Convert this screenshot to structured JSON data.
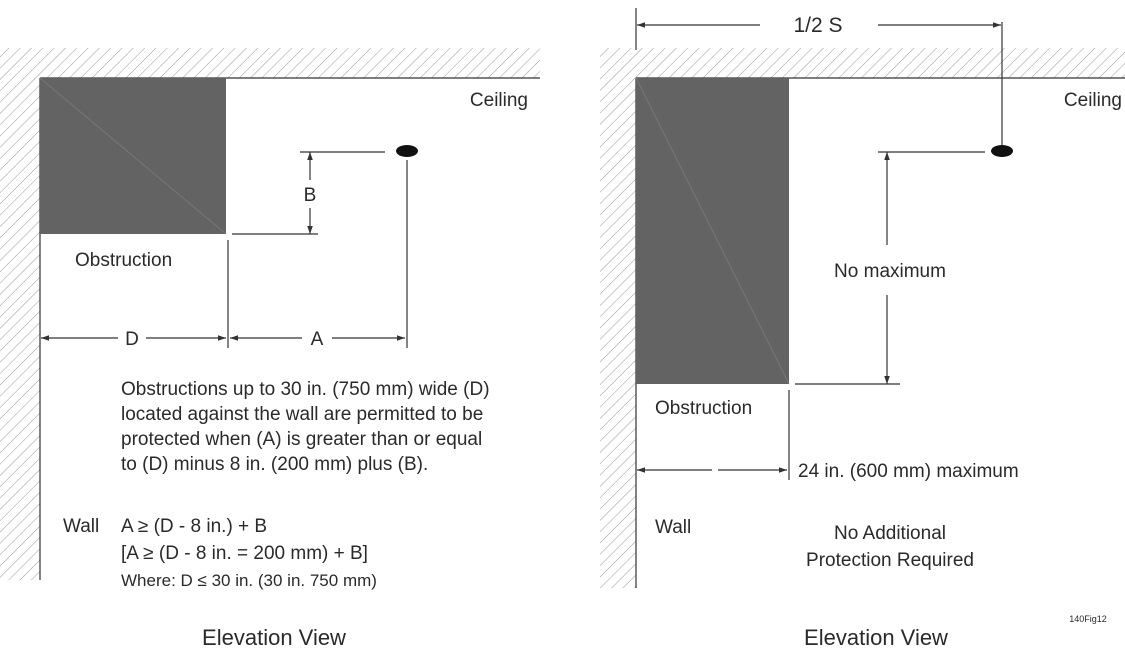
{
  "left": {
    "ceiling_label": "Ceiling",
    "obstruction_label": "Obstruction",
    "dim_b": "B",
    "dim_d": "D",
    "dim_a": "A",
    "description": [
      "Obstructions up to 30 in. (750 mm) wide (D)",
      "located against the wall are permitted to be",
      "protected when (A) is greater than or equal",
      "to (D) minus 8 in. (200 mm) plus (B)."
    ],
    "wall_label": "Wall",
    "formula_lines": [
      "A ≥ (D - 8 in.) + B",
      "[A ≥ (D - 8 in. = 200 mm) + B]",
      "Where: D ≤ 30 in. (30 in. 750 mm)"
    ],
    "view_title": "Elevation View"
  },
  "right": {
    "spacing_label": "1/2  S",
    "ceiling_label": "Ceiling",
    "no_max_label": "No maximum",
    "obstruction_label": "Obstruction",
    "max_24_label": "24 in. (600 mm) maximum",
    "wall_label": "Wall",
    "no_additional_lines": [
      "No Additional",
      "Protection Required"
    ],
    "view_title": "Elevation View"
  },
  "fig_id": "140Fig12",
  "colors": {
    "obstruction": "#636363",
    "hatch": "#9a9a9a",
    "line": "#333333"
  }
}
